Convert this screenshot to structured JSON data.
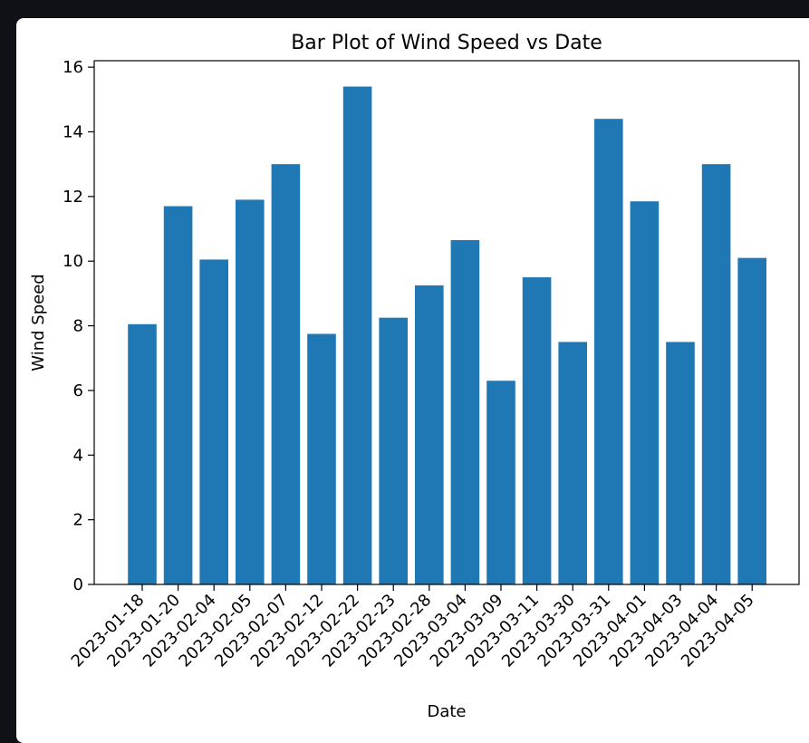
{
  "chart_data": {
    "type": "bar",
    "title": "Bar Plot of Wind Speed vs Date",
    "xlabel": "Date",
    "ylabel": "Wind Speed",
    "categories": [
      "2023-01-18",
      "2023-01-20",
      "2023-02-04",
      "2023-02-05",
      "2023-02-07",
      "2023-02-12",
      "2023-02-22",
      "2023-02-23",
      "2023-02-28",
      "2023-03-04",
      "2023-03-09",
      "2023-03-11",
      "2023-03-30",
      "2023-03-31",
      "2023-04-01",
      "2023-04-03",
      "2023-04-04",
      "2023-04-05"
    ],
    "values": [
      8.05,
      11.7,
      10.05,
      11.9,
      13.0,
      7.75,
      15.4,
      8.25,
      9.25,
      10.65,
      6.3,
      9.5,
      7.5,
      14.4,
      11.85,
      7.5,
      13.0,
      10.1
    ],
    "ylim": [
      0,
      16.2
    ],
    "yticks": [
      0,
      2,
      4,
      6,
      8,
      10,
      12,
      14,
      16
    ],
    "bar_color": "#1f77b4",
    "grid": false,
    "legend": "none"
  }
}
